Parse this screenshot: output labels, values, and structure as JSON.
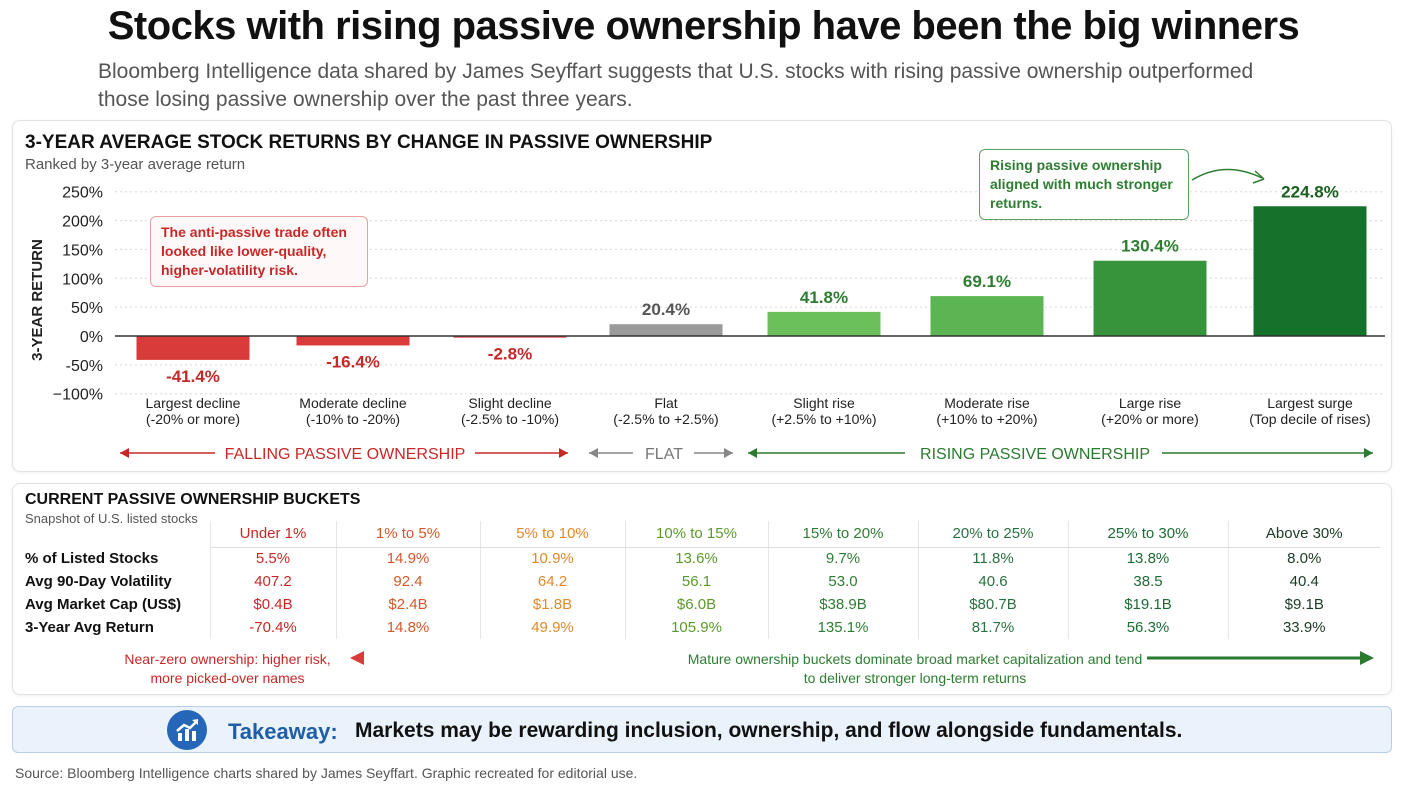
{
  "title": "Stocks with rising passive ownership have been the big winners",
  "subtitle": "Bloomberg Intelligence data shared by James Seyffart suggests that U.S. stocks with rising passive ownership outperformed those losing passive ownership over the past three years.",
  "chart_data": {
    "type": "bar",
    "title": "3-YEAR AVERAGE STOCK RETURNS BY CHANGE IN PASSIVE OWNERSHIP",
    "subtitle": "Ranked by 3-year average return",
    "ylabel": "3-YEAR RETURN",
    "ylim": [
      -100,
      250
    ],
    "yticks": [
      250,
      200,
      150,
      100,
      50,
      0,
      -50,
      -100
    ],
    "ytick_labels": [
      "250%",
      "200%",
      "150%",
      "100%",
      "50%",
      "0%",
      "-50%",
      "−100%"
    ],
    "grid": "dotted horizontal",
    "categories": [
      [
        "Largest decline",
        "(-20% or more)"
      ],
      [
        "Moderate decline",
        "(-10% to -20%)"
      ],
      [
        "Slight decline",
        "(-2.5% to -10%)"
      ],
      [
        "Flat",
        "(-2.5% to +2.5%)"
      ],
      [
        "Slight rise",
        "(+2.5% to +10%)"
      ],
      [
        "Moderate rise",
        "(+10% to +20%)"
      ],
      [
        "Large rise",
        "(+20% or more)"
      ],
      [
        "Largest surge",
        "(Top decile of rises)"
      ]
    ],
    "values": [
      -41.4,
      -16.4,
      -2.8,
      20.4,
      41.8,
      69.1,
      130.4,
      224.8
    ],
    "value_labels": [
      "-41.4%",
      "-16.4%",
      "-2.8%",
      "20.4%",
      "41.8%",
      "69.1%",
      "130.4%",
      "224.8%"
    ],
    "bar_colors": [
      "#d93a3a",
      "#d93a3a",
      "#d93a3a",
      "#9a9a9a",
      "#6cc05c",
      "#5cb552",
      "#38943a",
      "#15722a"
    ],
    "label_colors": [
      "#c62828",
      "#c62828",
      "#c62828",
      "#555555",
      "#2e7d32",
      "#2e7d32",
      "#2e7d32",
      "#1b5e20"
    ],
    "annotations": {
      "red": "The anti-passive trade often looked like lower-quality, higher-volatility risk.",
      "green": "Rising passive ownership aligned with much stronger returns."
    },
    "groups": {
      "falling": "FALLING PASSIVE OWNERSHIP",
      "flat": "FLAT",
      "rising": "RISING PASSIVE OWNERSHIP"
    }
  },
  "table": {
    "title": "CURRENT PASSIVE OWNERSHIP BUCKETS",
    "subtitle": "Snapshot of U.S. listed stocks",
    "columns": [
      "Under 1%",
      "1% to 5%",
      "5% to 10%",
      "10% to 15%",
      "15% to 20%",
      "20% to 25%",
      "25% to 30%",
      "Above 30%"
    ],
    "column_colors": [
      "#c62828",
      "#d4582a",
      "#e08a2a",
      "#5a9a2a",
      "#2e7d32",
      "#2a7040",
      "#1f6b35",
      "#1c3a24"
    ],
    "rows": [
      {
        "label": "% of Listed Stocks",
        "values": [
          "5.5%",
          "14.9%",
          "10.9%",
          "13.6%",
          "9.7%",
          "11.8%",
          "13.8%",
          "8.0%"
        ]
      },
      {
        "label": "Avg 90-Day Volatility",
        "values": [
          "407.2",
          "92.4",
          "64.2",
          "56.1",
          "53.0",
          "40.6",
          "38.5",
          "40.4"
        ]
      },
      {
        "label": "Avg Market Cap (US$)",
        "values": [
          "$0.4B",
          "$2.4B",
          "$1.8B",
          "$6.0B",
          "$38.9B",
          "$80.7B",
          "$19.1B",
          "$9.1B"
        ]
      },
      {
        "label": "3-Year Avg Return",
        "values": [
          "-70.4%",
          "14.8%",
          "49.9%",
          "105.9%",
          "135.1%",
          "81.7%",
          "56.3%",
          "33.9%"
        ]
      }
    ],
    "note_left": "Near-zero ownership: higher risk, more picked-over names",
    "note_right": "Mature ownership buckets dominate broad market capitalization and tend to deliver stronger long-term returns"
  },
  "takeaway": {
    "label": "Takeaway:",
    "text": "Markets may be rewarding inclusion, ownership, and flow alongside fundamentals.",
    "icon": "chart-growth-icon"
  },
  "source": "Source: Bloomberg Intelligence charts shared by James Seyffart. Graphic recreated for editorial use."
}
